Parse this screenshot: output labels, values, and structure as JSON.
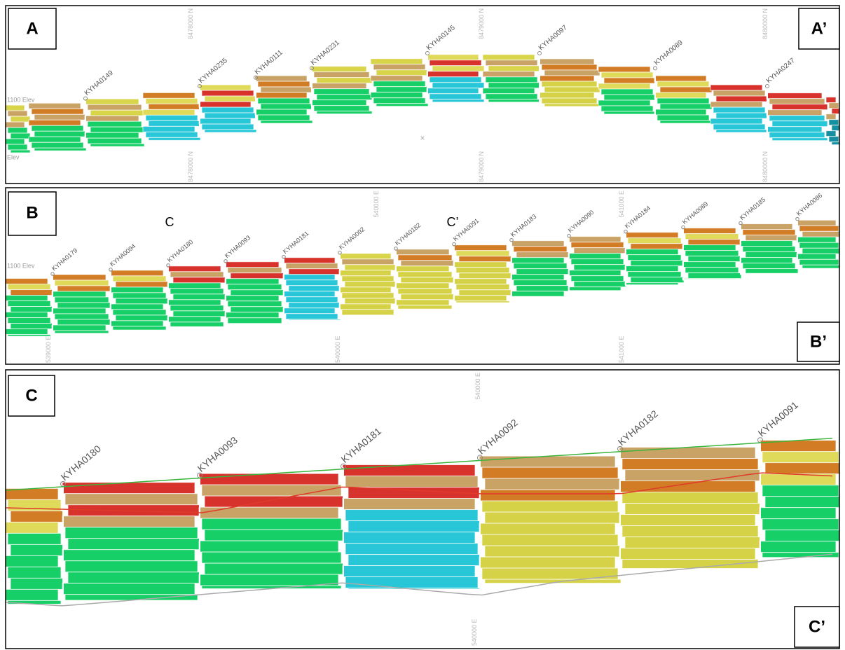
{
  "panels": [
    {
      "label": "A",
      "end_label": "A’",
      "holes": [
        "KYHA0149",
        "KYHA0235",
        "KYHA0111",
        "KYHA0231",
        "KYHA0145",
        "KYHA0097",
        "KYHA0089",
        "KYHA0247"
      ],
      "grid_labels_top": [
        "8478000 N",
        "8479000 N",
        "8480000 N"
      ],
      "grid_labels_bottom": [
        "8478000 N",
        "8479000 N",
        "8480000 N"
      ],
      "elevation_labels": [
        "1100 Elev",
        "Elev"
      ]
    },
    {
      "label": "B",
      "end_label": "B’",
      "section_markers": [
        "C",
        "C’"
      ],
      "holes": [
        "KYHA0179",
        "KYHA0094",
        "KYHA0180",
        "KYHA0093",
        "KYHA0181",
        "KYHA0092",
        "KYHA0182",
        "KYHA0091",
        "KYHA0183",
        "KYHA0090",
        "KYHA0184",
        "KYHA0089",
        "KYHA0185",
        "KYHA0086"
      ],
      "grid_labels_top": [
        "540000 E",
        "541000 E"
      ],
      "grid_labels_bottom": [
        "539000 E",
        "540000 E",
        "541000 E"
      ],
      "elevation_labels": [
        "1100 Elev"
      ]
    },
    {
      "label": "C",
      "end_label": "C’",
      "holes": [
        "KYHA0180",
        "KYHA0093",
        "KYHA0181",
        "KYHA0092",
        "KYHA0182",
        "KYHA0091"
      ],
      "grid_labels_top": [
        "540000 E"
      ],
      "grid_labels_bottom": [
        "540000 E"
      ]
    }
  ]
}
